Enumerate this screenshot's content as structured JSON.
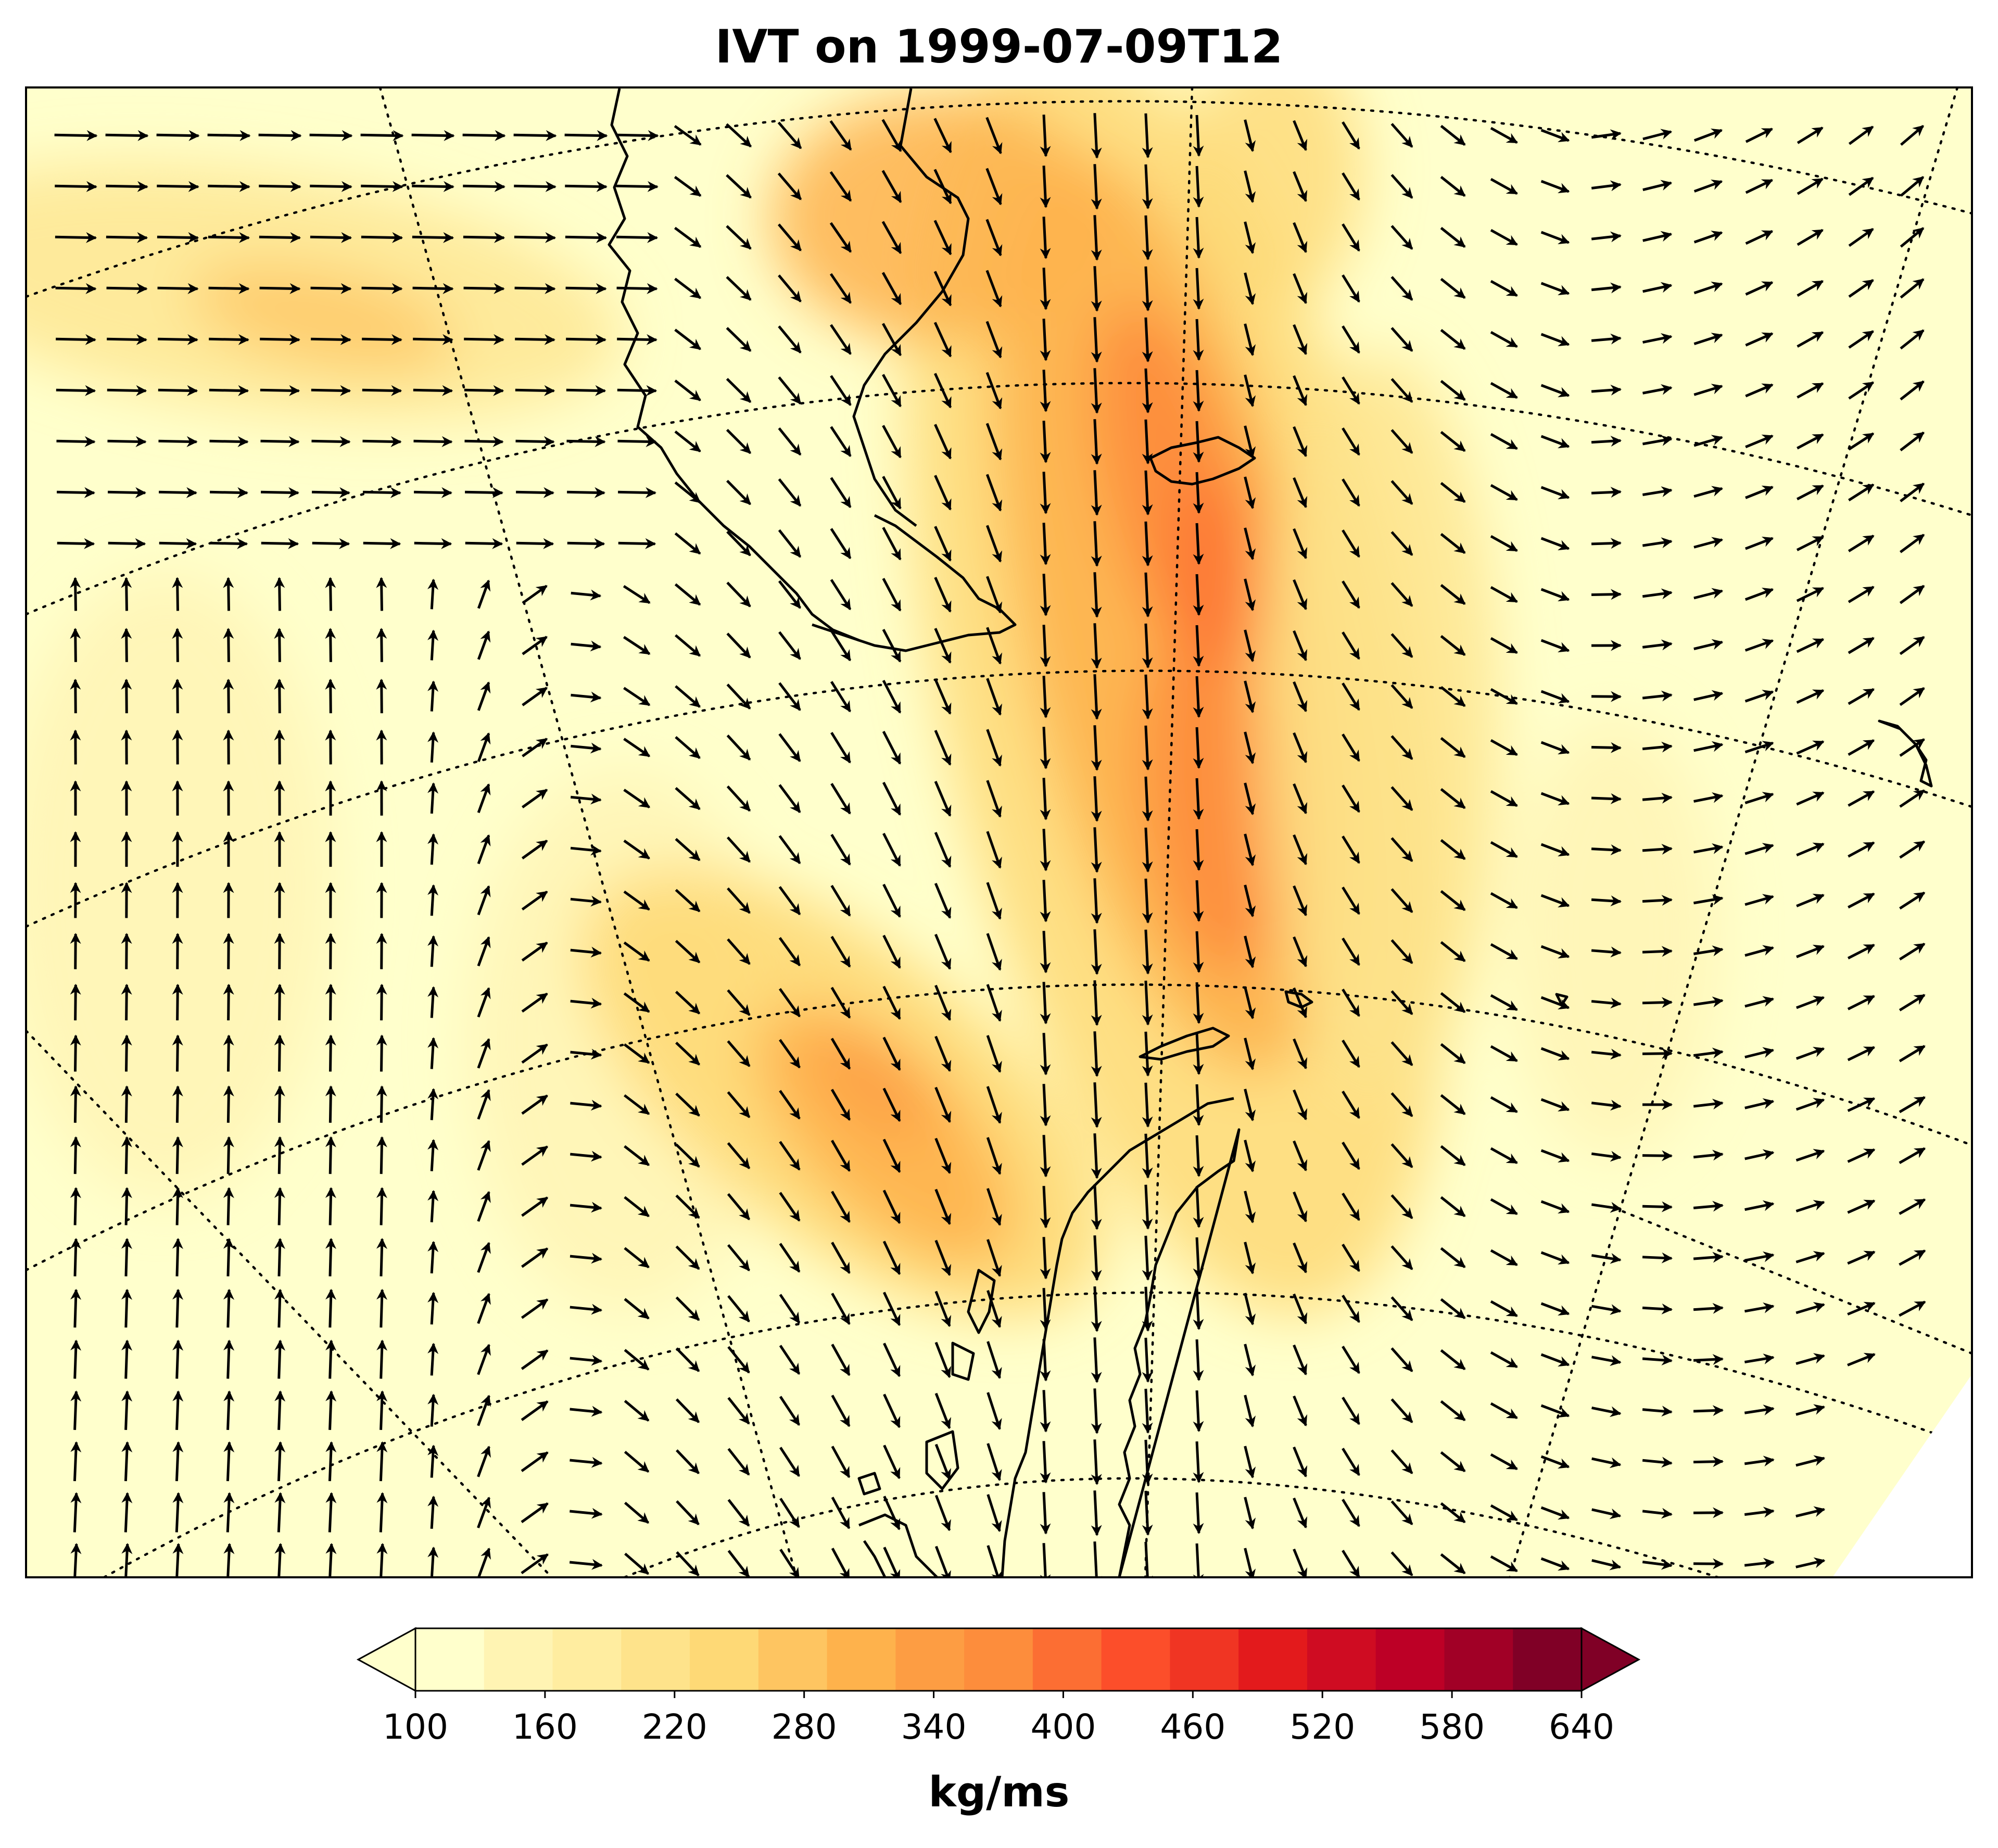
{
  "title": "IVT on 1999-07-09T12",
  "colorbar": {
    "unit_label": "kg/ms",
    "ticks": [
      "100",
      "160",
      "220",
      "280",
      "340",
      "400",
      "460",
      "520",
      "580",
      "640"
    ],
    "levels": [
      100,
      640
    ],
    "level_step": 30,
    "colors": [
      "#ffffcc",
      "#fff4b3",
      "#ffeda0",
      "#fee38b",
      "#fed976",
      "#fec561",
      "#feb24c",
      "#fd9d43",
      "#fd8d3c",
      "#fc6e33",
      "#fc4e2a",
      "#f03523",
      "#e31a1c",
      "#cf0c22",
      "#bd0026",
      "#a10026",
      "#800026"
    ],
    "extend": "both"
  },
  "map": {
    "field": "IVT",
    "projection": "polar stereographic (south)",
    "region": "Southern South America, Drake Passage and Antarctic Peninsula",
    "graticule": "dotted",
    "coastlines": true,
    "vectors": "IVT direction arrows",
    "ivt_features": [
      {
        "name": "plume east of Tierra del Fuego to South Shetlands",
        "max_ivt": 400
      },
      {
        "name": "Pacific band west of Antarctic Peninsula",
        "max_ivt": 340
      },
      {
        "name": "westerly band off Chile",
        "max_ivt": 250
      }
    ]
  }
}
